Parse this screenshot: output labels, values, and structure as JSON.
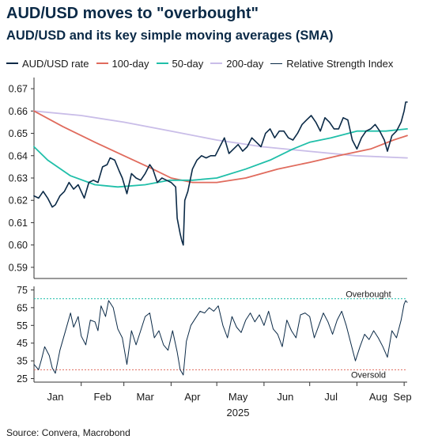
{
  "header": {
    "title": "AUD/USD moves to \"overbought\"",
    "subtitle": "AUD/USD and its key simple moving averages (SMA)"
  },
  "legend": [
    {
      "label": "AUD/USD rate",
      "color": "#0b2a47"
    },
    {
      "label": "100-day",
      "color": "#e06b5d"
    },
    {
      "label": "50-day",
      "color": "#20bfa9"
    },
    {
      "label": "200-day",
      "color": "#c9bde8"
    },
    {
      "label": "Relative Strength Index",
      "color": "#0b2a47"
    }
  ],
  "source": "Source: Convera, Macrobond",
  "chart_data": [
    {
      "type": "line",
      "title": "AUD/USD and its key simple moving averages (SMA)",
      "x_axis": {
        "months": [
          "Jan",
          "Feb",
          "Mar",
          "Apr",
          "May",
          "Jun",
          "Jul",
          "Aug",
          "Sep"
        ],
        "year": "2025",
        "range": [
          "2025-01-01",
          "2025-09-03"
        ]
      },
      "y_axis": {
        "ylim": [
          0.585,
          0.675
        ],
        "ticks": [
          "0.59",
          "0.60",
          "0.61",
          "0.62",
          "0.63",
          "0.64",
          "0.65",
          "0.66",
          "0.67"
        ]
      },
      "grid": false,
      "legend_position": "top",
      "series": [
        {
          "name": "AUD/USD rate",
          "color": "#0b2a47",
          "points": [
            [
              "2025-01-01",
              0.622
            ],
            [
              "2025-01-04",
              0.621
            ],
            [
              "2025-01-07",
              0.624
            ],
            [
              "2025-01-10",
              0.621
            ],
            [
              "2025-01-13",
              0.617
            ],
            [
              "2025-01-15",
              0.618
            ],
            [
              "2025-01-18",
              0.622
            ],
            [
              "2025-01-21",
              0.624
            ],
            [
              "2025-01-24",
              0.628
            ],
            [
              "2025-01-27",
              0.625
            ],
            [
              "2025-01-30",
              0.627
            ],
            [
              "2025-02-01",
              0.624
            ],
            [
              "2025-02-03",
              0.621
            ],
            [
              "2025-02-06",
              0.628
            ],
            [
              "2025-02-09",
              0.629
            ],
            [
              "2025-02-12",
              0.628
            ],
            [
              "2025-02-15",
              0.635
            ],
            [
              "2025-02-18",
              0.636
            ],
            [
              "2025-02-20",
              0.639
            ],
            [
              "2025-02-23",
              0.638
            ],
            [
              "2025-02-26",
              0.633
            ],
            [
              "2025-02-28",
              0.63
            ],
            [
              "2025-03-03",
              0.623
            ],
            [
              "2025-03-06",
              0.632
            ],
            [
              "2025-03-09",
              0.63
            ],
            [
              "2025-03-12",
              0.629
            ],
            [
              "2025-03-15",
              0.632
            ],
            [
              "2025-03-18",
              0.636
            ],
            [
              "2025-03-20",
              0.634
            ],
            [
              "2025-03-23",
              0.628
            ],
            [
              "2025-03-26",
              0.63
            ],
            [
              "2025-03-29",
              0.629
            ],
            [
              "2025-04-01",
              0.628
            ],
            [
              "2025-04-04",
              0.626
            ],
            [
              "2025-04-05",
              0.612
            ],
            [
              "2025-04-07",
              0.605
            ],
            [
              "2025-04-08",
              0.602
            ],
            [
              "2025-04-09",
              0.6
            ],
            [
              "2025-04-10",
              0.62
            ],
            [
              "2025-04-12",
              0.624
            ],
            [
              "2025-04-15",
              0.634
            ],
            [
              "2025-04-18",
              0.638
            ],
            [
              "2025-04-21",
              0.64
            ],
            [
              "2025-04-24",
              0.639
            ],
            [
              "2025-04-27",
              0.64
            ],
            [
              "2025-04-30",
              0.64
            ],
            [
              "2025-05-03",
              0.644
            ],
            [
              "2025-05-06",
              0.648
            ],
            [
              "2025-05-09",
              0.641
            ],
            [
              "2025-05-12",
              0.643
            ],
            [
              "2025-05-15",
              0.645
            ],
            [
              "2025-05-18",
              0.642
            ],
            [
              "2025-05-21",
              0.644
            ],
            [
              "2025-05-24",
              0.648
            ],
            [
              "2025-05-27",
              0.646
            ],
            [
              "2025-05-30",
              0.644
            ],
            [
              "2025-06-02",
              0.65
            ],
            [
              "2025-06-05",
              0.652
            ],
            [
              "2025-06-08",
              0.648
            ],
            [
              "2025-06-11",
              0.651
            ],
            [
              "2025-06-14",
              0.651
            ],
            [
              "2025-06-17",
              0.648
            ],
            [
              "2025-06-20",
              0.647
            ],
            [
              "2025-06-23",
              0.65
            ],
            [
              "2025-06-26",
              0.654
            ],
            [
              "2025-06-29",
              0.656
            ],
            [
              "2025-07-02",
              0.658
            ],
            [
              "2025-07-05",
              0.655
            ],
            [
              "2025-07-08",
              0.651
            ],
            [
              "2025-07-11",
              0.657
            ],
            [
              "2025-07-14",
              0.655
            ],
            [
              "2025-07-17",
              0.652
            ],
            [
              "2025-07-20",
              0.652
            ],
            [
              "2025-07-23",
              0.657
            ],
            [
              "2025-07-26",
              0.656
            ],
            [
              "2025-07-29",
              0.647
            ],
            [
              "2025-08-01",
              0.643
            ],
            [
              "2025-08-04",
              0.648
            ],
            [
              "2025-08-07",
              0.651
            ],
            [
              "2025-08-10",
              0.652
            ],
            [
              "2025-08-13",
              0.654
            ],
            [
              "2025-08-16",
              0.651
            ],
            [
              "2025-08-19",
              0.647
            ],
            [
              "2025-08-21",
              0.642
            ],
            [
              "2025-08-24",
              0.649
            ],
            [
              "2025-08-27",
              0.651
            ],
            [
              "2025-08-30",
              0.655
            ],
            [
              "2025-09-01",
              0.66
            ],
            [
              "2025-09-02",
              0.664
            ],
            [
              "2025-09-03",
              0.664
            ]
          ]
        },
        {
          "name": "100-day",
          "color": "#e06b5d",
          "points": [
            [
              "2025-01-01",
              0.66
            ],
            [
              "2025-01-20",
              0.653
            ],
            [
              "2025-02-10",
              0.646
            ],
            [
              "2025-03-01",
              0.64
            ],
            [
              "2025-03-20",
              0.634
            ],
            [
              "2025-04-01",
              0.63
            ],
            [
              "2025-04-15",
              0.628
            ],
            [
              "2025-05-01",
              0.628
            ],
            [
              "2025-05-20",
              0.63
            ],
            [
              "2025-06-10",
              0.634
            ],
            [
              "2025-07-01",
              0.637
            ],
            [
              "2025-07-20",
              0.64
            ],
            [
              "2025-08-10",
              0.643
            ],
            [
              "2025-08-25",
              0.647
            ],
            [
              "2025-09-03",
              0.649
            ]
          ]
        },
        {
          "name": "50-day",
          "color": "#20bfa9",
          "points": [
            [
              "2025-01-01",
              0.644
            ],
            [
              "2025-01-10",
              0.638
            ],
            [
              "2025-01-25",
              0.631
            ],
            [
              "2025-02-10",
              0.627
            ],
            [
              "2025-02-25",
              0.626
            ],
            [
              "2025-03-15",
              0.627
            ],
            [
              "2025-03-31",
              0.629
            ],
            [
              "2025-04-15",
              0.629
            ],
            [
              "2025-05-01",
              0.63
            ],
            [
              "2025-05-20",
              0.634
            ],
            [
              "2025-06-05",
              0.638
            ],
            [
              "2025-06-20",
              0.643
            ],
            [
              "2025-07-01",
              0.646
            ],
            [
              "2025-07-15",
              0.648
            ],
            [
              "2025-08-01",
              0.651
            ],
            [
              "2025-08-20",
              0.651
            ],
            [
              "2025-09-03",
              0.652
            ]
          ]
        },
        {
          "name": "200-day",
          "color": "#c9bde8",
          "points": [
            [
              "2025-01-01",
              0.66
            ],
            [
              "2025-02-01",
              0.658
            ],
            [
              "2025-03-01",
              0.655
            ],
            [
              "2025-04-01",
              0.651
            ],
            [
              "2025-05-01",
              0.647
            ],
            [
              "2025-05-31",
              0.644
            ],
            [
              "2025-06-30",
              0.642
            ],
            [
              "2025-07-31",
              0.64
            ],
            [
              "2025-09-03",
              0.639
            ]
          ]
        }
      ]
    },
    {
      "type": "line",
      "title": "Relative Strength Index",
      "y_axis": {
        "ylim": [
          23,
          77
        ],
        "ticks": [
          "25",
          "35",
          "45",
          "55",
          "65",
          "75"
        ]
      },
      "series": [
        {
          "name": "Relative Strength Index",
          "color": "#0b2a47",
          "points": [
            [
              "2025-01-01",
              33
            ],
            [
              "2025-01-04",
              30
            ],
            [
              "2025-01-06",
              36
            ],
            [
              "2025-01-08",
              43
            ],
            [
              "2025-01-11",
              38
            ],
            [
              "2025-01-13",
              31
            ],
            [
              "2025-01-15",
              28
            ],
            [
              "2025-01-18",
              41
            ],
            [
              "2025-01-22",
              53
            ],
            [
              "2025-01-25",
              62
            ],
            [
              "2025-01-27",
              54
            ],
            [
              "2025-01-30",
              60
            ],
            [
              "2025-02-01",
              49
            ],
            [
              "2025-02-04",
              44
            ],
            [
              "2025-02-07",
              58
            ],
            [
              "2025-02-10",
              57
            ],
            [
              "2025-02-12",
              52
            ],
            [
              "2025-02-14",
              66
            ],
            [
              "2025-02-17",
              60
            ],
            [
              "2025-02-19",
              69
            ],
            [
              "2025-02-22",
              65
            ],
            [
              "2025-02-25",
              53
            ],
            [
              "2025-02-28",
              48
            ],
            [
              "2025-03-03",
              33
            ],
            [
              "2025-03-06",
              52
            ],
            [
              "2025-03-09",
              44
            ],
            [
              "2025-03-12",
              52
            ],
            [
              "2025-03-15",
              60
            ],
            [
              "2025-03-18",
              62
            ],
            [
              "2025-03-21",
              48
            ],
            [
              "2025-03-24",
              52
            ],
            [
              "2025-03-27",
              44
            ],
            [
              "2025-03-30",
              41
            ],
            [
              "2025-04-02",
              52
            ],
            [
              "2025-04-05",
              40
            ],
            [
              "2025-04-07",
              30
            ],
            [
              "2025-04-09",
              27
            ],
            [
              "2025-04-11",
              46
            ],
            [
              "2025-04-14",
              55
            ],
            [
              "2025-04-17",
              59
            ],
            [
              "2025-04-20",
              63
            ],
            [
              "2025-04-23",
              62
            ],
            [
              "2025-04-26",
              65
            ],
            [
              "2025-04-29",
              63
            ],
            [
              "2025-05-02",
              66
            ],
            [
              "2025-05-05",
              55
            ],
            [
              "2025-05-08",
              48
            ],
            [
              "2025-05-11",
              60
            ],
            [
              "2025-05-14",
              54
            ],
            [
              "2025-05-17",
              51
            ],
            [
              "2025-05-20",
              58
            ],
            [
              "2025-05-23",
              62
            ],
            [
              "2025-05-26",
              57
            ],
            [
              "2025-05-29",
              61
            ],
            [
              "2025-06-01",
              55
            ],
            [
              "2025-06-04",
              63
            ],
            [
              "2025-06-07",
              53
            ],
            [
              "2025-06-10",
              50
            ],
            [
              "2025-06-13",
              43
            ],
            [
              "2025-06-16",
              58
            ],
            [
              "2025-06-19",
              52
            ],
            [
              "2025-06-22",
              48
            ],
            [
              "2025-06-25",
              61
            ],
            [
              "2025-06-28",
              62
            ],
            [
              "2025-07-01",
              60
            ],
            [
              "2025-07-04",
              48
            ],
            [
              "2025-07-07",
              55
            ],
            [
              "2025-07-10",
              62
            ],
            [
              "2025-07-13",
              57
            ],
            [
              "2025-07-16",
              50
            ],
            [
              "2025-07-19",
              58
            ],
            [
              "2025-07-22",
              63
            ],
            [
              "2025-07-25",
              55
            ],
            [
              "2025-07-28",
              45
            ],
            [
              "2025-07-31",
              35
            ],
            [
              "2025-08-03",
              43
            ],
            [
              "2025-08-06",
              50
            ],
            [
              "2025-08-09",
              47
            ],
            [
              "2025-08-12",
              52
            ],
            [
              "2025-08-15",
              48
            ],
            [
              "2025-08-18",
              43
            ],
            [
              "2025-08-21",
              37
            ],
            [
              "2025-08-24",
              52
            ],
            [
              "2025-08-27",
              48
            ],
            [
              "2025-08-30",
              58
            ],
            [
              "2025-09-01",
              67
            ],
            [
              "2025-09-02",
              69
            ],
            [
              "2025-09-03",
              68
            ]
          ]
        }
      ],
      "annotations": [
        {
          "label": "Overbought",
          "y": 70,
          "color": "#20bfa9"
        },
        {
          "label": "Oversold",
          "y": 30,
          "color": "#e06b5d"
        }
      ]
    }
  ]
}
